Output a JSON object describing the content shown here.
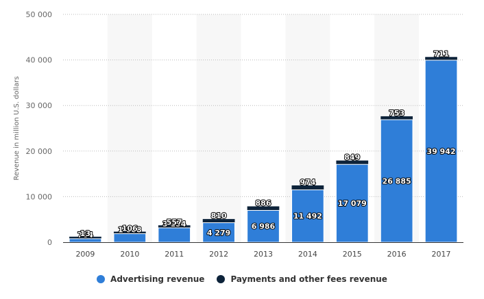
{
  "chart_data": {
    "type": "bar",
    "stacked": true,
    "categories": [
      "2009",
      "2010",
      "2011",
      "2012",
      "2013",
      "2014",
      "2015",
      "2016",
      "2017"
    ],
    "series": [
      {
        "name": "Advertising revenue",
        "color": "#2f7ed8",
        "values": [
          764,
          1868,
          3154,
          4279,
          6986,
          11492,
          17079,
          26885,
          39942
        ]
      },
      {
        "name": "Payments and other fees revenue",
        "color": "#0d233a",
        "values": [
          13,
          106,
          557,
          810,
          886,
          974,
          849,
          753,
          711
        ]
      }
    ],
    "value_labels": {
      "Advertising revenue": [
        "764",
        "1 868",
        "3 154",
        "4 279",
        "6 986",
        "11 492",
        "17 079",
        "26 885",
        "39 942"
      ],
      "Payments and other fees revenue": [
        "13",
        "106",
        "557",
        "810",
        "886",
        "974",
        "849",
        "753",
        "711"
      ]
    },
    "ylabel": "Revenue in million U.S. dollars",
    "ylim": [
      0,
      50000
    ],
    "yticks": [
      0,
      10000,
      20000,
      30000,
      40000,
      50000
    ],
    "ytick_labels": [
      "0",
      "10 000",
      "20 000",
      "30 000",
      "40 000",
      "50 000"
    ],
    "grid": true,
    "legend_position": "bottom-center"
  },
  "legend": {
    "advertising_label": "Advertising revenue",
    "payments_label": "Payments and other fees revenue"
  }
}
